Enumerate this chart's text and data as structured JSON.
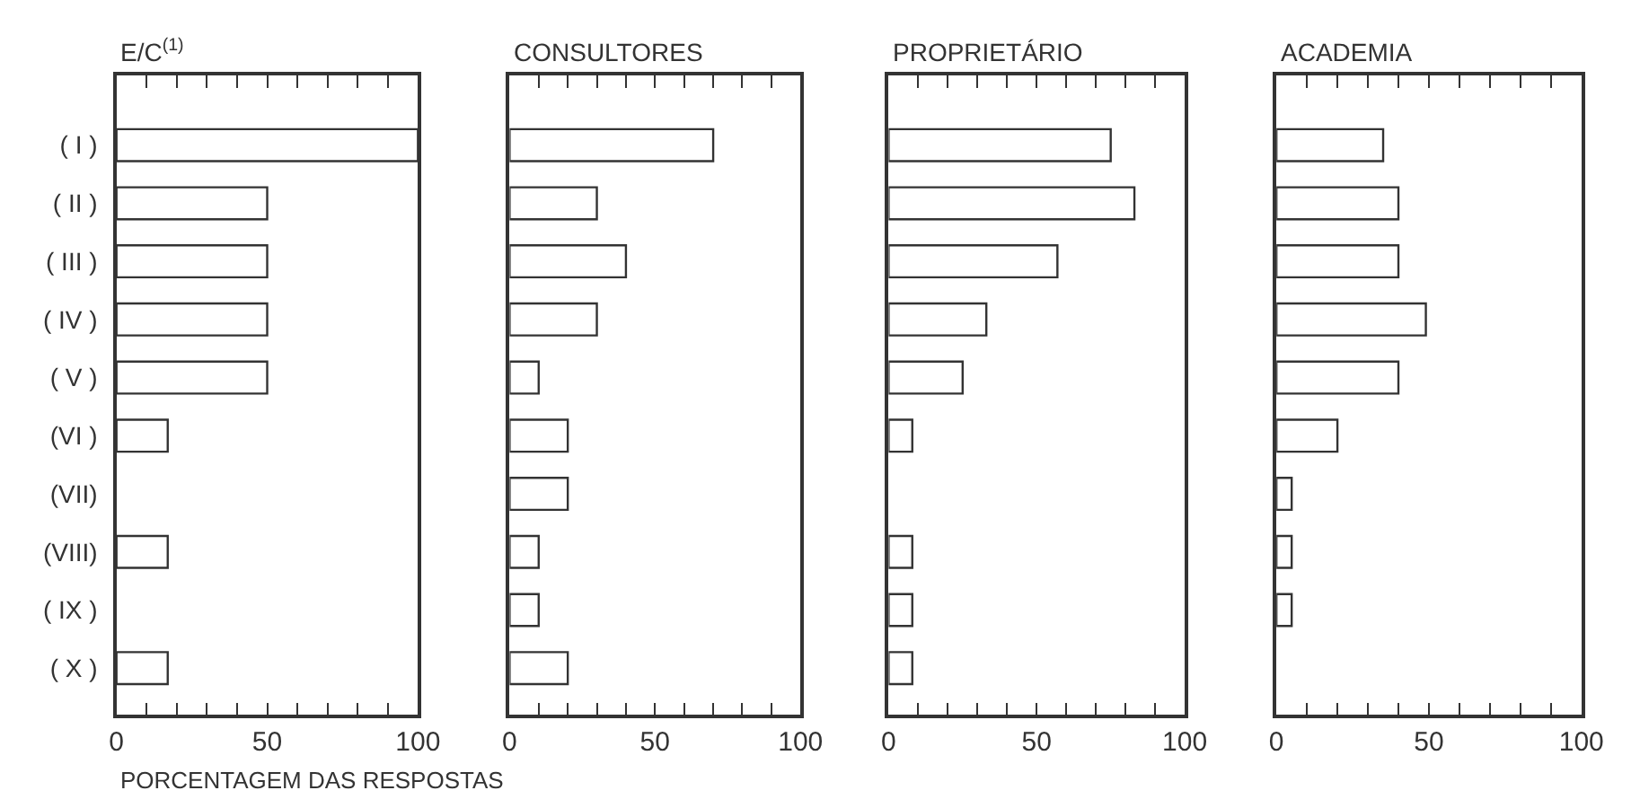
{
  "chart_data": [
    {
      "type": "bar",
      "orientation": "horizontal",
      "title": "E/C$^{(1)}$",
      "xlabel": "PORCENTAGEM DAS RESPOSTAS",
      "categories": [
        "( I )",
        "( II )",
        "( III )",
        "( IV )",
        "( V )",
        "(VI )",
        "(VII)",
        "(VIII)",
        "( IX )",
        "( X )"
      ],
      "values": [
        100,
        50,
        50,
        50,
        50,
        17,
        null,
        17,
        null,
        17
      ],
      "color": "#ffffff",
      "xlim": [
        0,
        100
      ],
      "xticks": [
        0,
        {
          "value": 10,
          "label": null
        },
        {
          "value": 20,
          "label": null
        },
        {
          "value": 30,
          "label": null
        },
        {
          "value": 40,
          "label": null
        },
        50,
        {
          "value": 60,
          "label": null
        },
        {
          "value": 70,
          "label": null
        },
        {
          "value": 80,
          "label": null
        },
        {
          "value": 90,
          "label": null
        },
        100
      ]
    },
    {
      "type": "bar",
      "orientation": "horizontal",
      "title": "CONSULTORES",
      "categories": [
        null,
        null,
        null,
        null,
        null,
        null,
        null,
        null,
        null,
        null
      ],
      "values": [
        70,
        30,
        40,
        30,
        10,
        20,
        20,
        10,
        10,
        20
      ],
      "color": "#ffffff",
      "xlim": [
        0,
        100
      ],
      "xticks": [
        0,
        {
          "value": 10,
          "label": null
        },
        {
          "value": 20,
          "label": null
        },
        {
          "value": 30,
          "label": null
        },
        {
          "value": 40,
          "label": null
        },
        50,
        {
          "value": 60,
          "label": null
        },
        {
          "value": 70,
          "label": null
        },
        {
          "value": 80,
          "label": null
        },
        {
          "value": 90,
          "label": null
        },
        100
      ],
      "tick_labels": "x"
    },
    {
      "type": "bar",
      "orientation": "horizontal",
      "title": "PROPRIETÁRIO",
      "categories": [
        null,
        null,
        null,
        null,
        null,
        null,
        null,
        null,
        null,
        null
      ],
      "values": [
        75,
        83,
        57,
        33,
        25,
        8,
        null,
        8,
        8,
        8
      ],
      "color": "#ffffff",
      "xlim": [
        0,
        100
      ],
      "xticks": [
        0,
        {
          "value": 10,
          "label": null
        },
        {
          "value": 20,
          "label": null
        },
        {
          "value": 30,
          "label": null
        },
        {
          "value": 40,
          "label": null
        },
        50,
        {
          "value": 60,
          "label": null
        },
        {
          "value": 70,
          "label": null
        },
        {
          "value": 80,
          "label": null
        },
        {
          "value": 90,
          "label": null
        },
        100
      ],
      "tick_labels": "x"
    },
    {
      "type": "bar",
      "orientation": "horizontal",
      "title": "ACADEMIA",
      "categories": [
        null,
        null,
        null,
        null,
        null,
        null,
        null,
        null,
        null,
        null
      ],
      "values": [
        35,
        40,
        40,
        49,
        40,
        20,
        5,
        5,
        5,
        null
      ],
      "color": "#ffffff",
      "xlim": [
        0,
        100
      ],
      "xticks": [
        0,
        {
          "value": 10,
          "label": null
        },
        {
          "value": 20,
          "label": null
        },
        {
          "value": 30,
          "label": null
        },
        {
          "value": 40,
          "label": null
        },
        50,
        {
          "value": 60,
          "label": null
        },
        {
          "value": 70,
          "label": null
        },
        {
          "value": 80,
          "label": null
        },
        {
          "value": 90,
          "label": null
        },
        100
      ],
      "tick_labels": "x"
    }
  ]
}
